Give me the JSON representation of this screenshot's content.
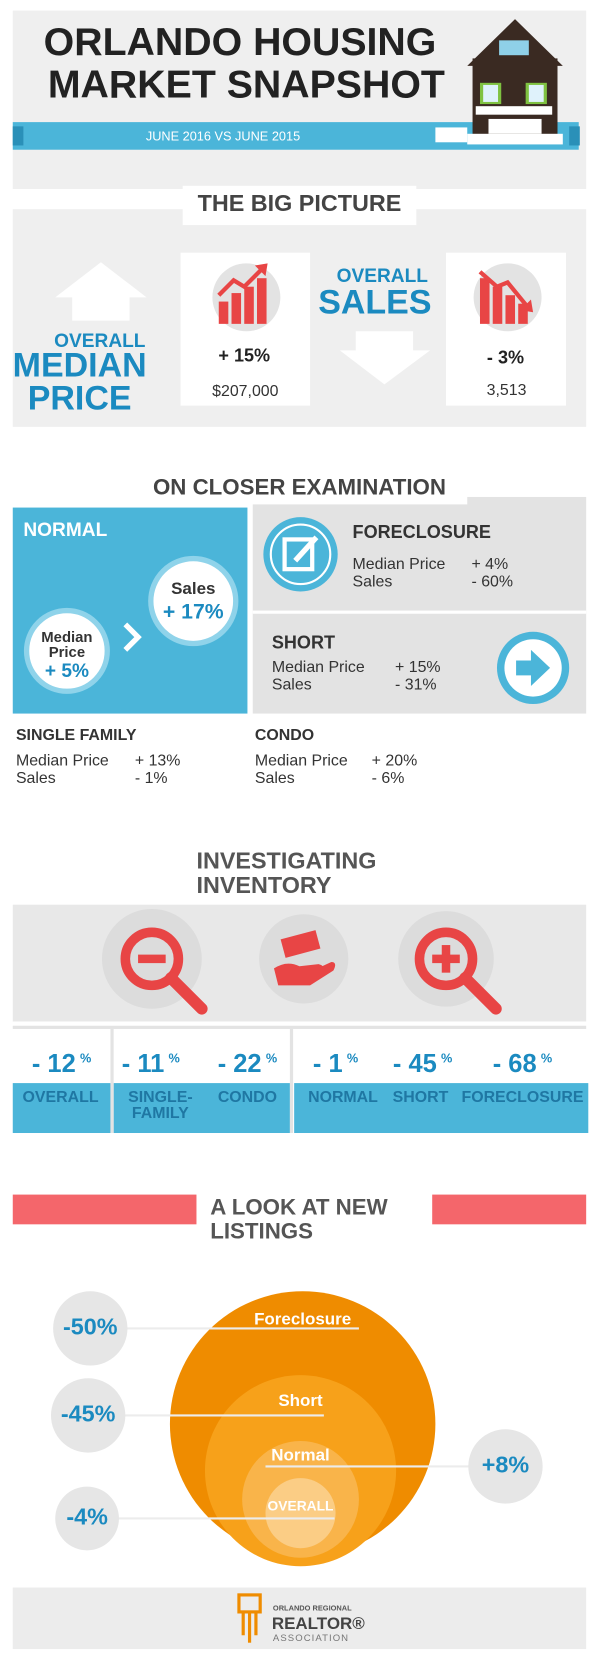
{
  "header": {
    "title_lines": [
      "ORLANDO HOUSING",
      "MARKET SNAPSHOT"
    ],
    "subtitle": "JUNE 2016 VS JUNE 2015"
  },
  "big_picture": {
    "heading": "THE BIG PICTURE",
    "median_price": {
      "label_lines": [
        "OVERALL",
        "MEDIAN",
        "PRICE"
      ],
      "change": "+ 15%",
      "value": "$207,000"
    },
    "sales": {
      "label_lines": [
        "OVERALL",
        "SALES"
      ],
      "change": "- 3%",
      "value": "3,513"
    }
  },
  "closer": {
    "heading": "ON CLOSER EXAMINATION",
    "normal": {
      "title": "NORMAL",
      "median_label_lines": [
        "Median",
        "Price"
      ],
      "median_change": "+ 5%",
      "sales_label": "Sales",
      "sales_change": "+ 17%"
    },
    "foreclosure": {
      "title": "FORECLOSURE",
      "rows": [
        [
          "Median Price",
          "+ 4%"
        ],
        [
          "Sales",
          "-  60%"
        ]
      ]
    },
    "short": {
      "title": "SHORT",
      "rows": [
        [
          "Median Price",
          "+ 15%"
        ],
        [
          "Sales",
          "- 31%"
        ]
      ]
    },
    "single_family": {
      "title": "SINGLE FAMILY",
      "rows": [
        [
          "Median Price",
          "+ 13%"
        ],
        [
          "Sales",
          "- 1%"
        ]
      ]
    },
    "condo": {
      "title": "CONDO",
      "rows": [
        [
          "Median Price",
          "+ 20%"
        ],
        [
          "Sales",
          "- 6%"
        ]
      ]
    }
  },
  "inventory": {
    "heading_lines": [
      "INVESTIGATING",
      "INVENTORY"
    ],
    "items": [
      {
        "value": "- 12",
        "unit": "%",
        "label_lines": [
          "OVERALL"
        ]
      },
      {
        "value": "- 11",
        "unit": "%",
        "label_lines": [
          "SINGLE-",
          "FAMILY"
        ]
      },
      {
        "value": "- 22",
        "unit": "%",
        "label_lines": [
          "CONDO"
        ]
      },
      {
        "value": "- 1",
        "unit": "%",
        "label_lines": [
          "NORMAL"
        ]
      },
      {
        "value": "- 45",
        "unit": "%",
        "label_lines": [
          "SHORT"
        ]
      },
      {
        "value": "- 68",
        "unit": "%",
        "label_lines": [
          "FORECLOSURE"
        ]
      }
    ]
  },
  "listings": {
    "heading_lines": [
      "A LOOK AT NEW",
      "LISTINGS"
    ],
    "items": [
      {
        "label": "Foreclosure",
        "change": "-50%"
      },
      {
        "label": "Short",
        "change": "-45%"
      },
      {
        "label": "Normal",
        "change": "+8%"
      },
      {
        "label": "OVERALL",
        "change": "-4%"
      }
    ]
  },
  "footer": {
    "logo_lines": [
      "ORLANDO REGIONAL",
      "REALTOR®",
      "ASSOCIATION"
    ]
  }
}
